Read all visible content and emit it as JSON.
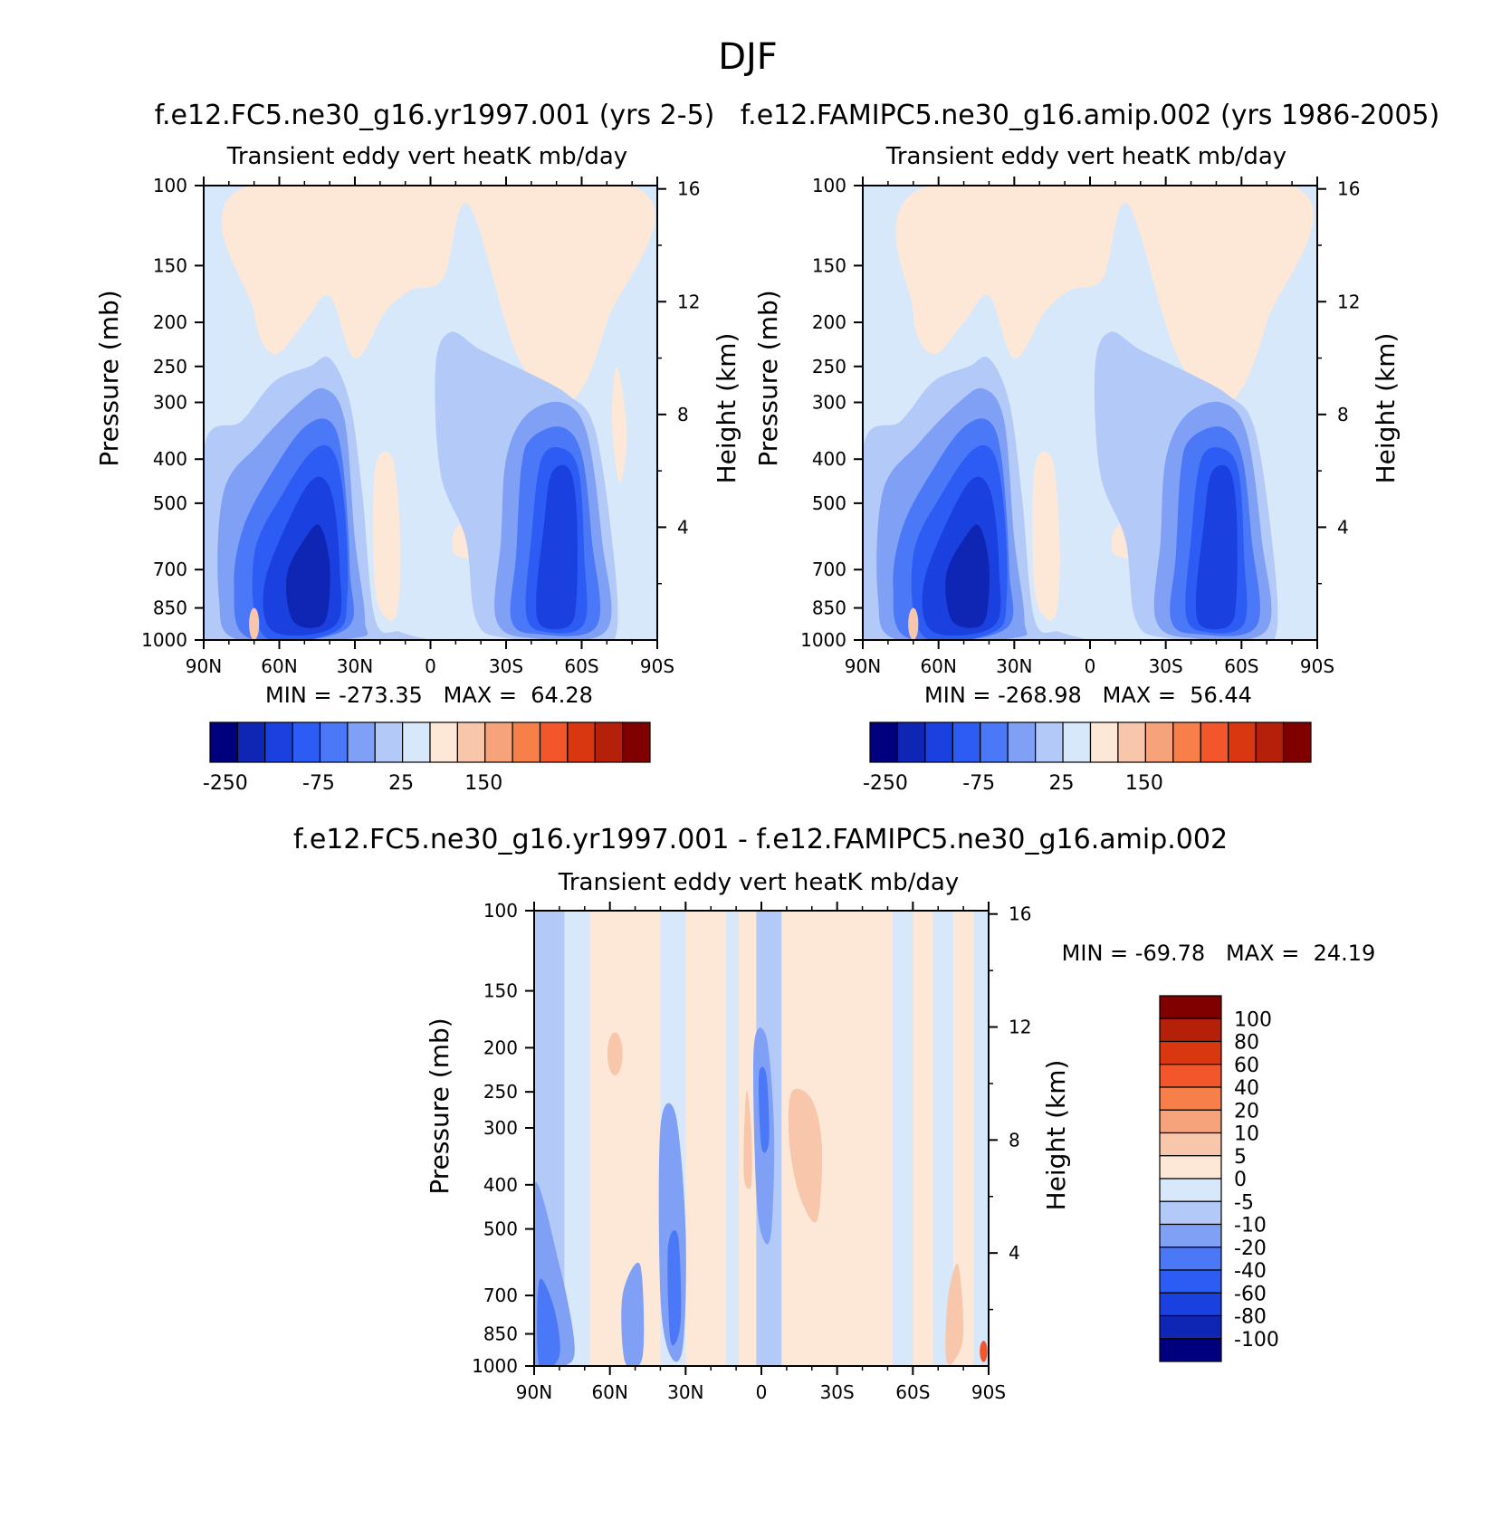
{
  "figure_title": "DJF",
  "chart_data": [
    {
      "type": "heatmap",
      "subtitle": "f.e12.FC5.ne30_g16.yr1997.001 (yrs 2-5)",
      "title": "Transient eddy vert heatK mb/day",
      "ylabel": "Pressure (mb)",
      "y2label": "Height (km)",
      "xlabel": "",
      "x_ticks": [
        "90N",
        "60N",
        "30N",
        "0",
        "30S",
        "60S",
        "90S"
      ],
      "y_ticks": [
        "100",
        "150",
        "200",
        "250",
        "300",
        "400",
        "500",
        "700",
        "850",
        "1000"
      ],
      "y2_ticks": [
        "16",
        "12",
        "8",
        "4"
      ],
      "ylim": [
        1000,
        100
      ],
      "stats": "MIN = -273.35   MAX =  64.28",
      "colorbar_orientation": "horizontal",
      "colorbar_labels": [
        "-250",
        "-75",
        "25",
        "150"
      ],
      "colorbar_colors": [
        "#00007f",
        "#0f26b5",
        "#1a40e0",
        "#2d5cf5",
        "#4a78f7",
        "#7fa0f5",
        "#b3c9f7",
        "#d8e8fb",
        "#fde8d8",
        "#f8c6aa",
        "#f6a27a",
        "#f67f4a",
        "#f2562a",
        "#d9370f",
        "#b4200a",
        "#800000"
      ],
      "note": "Negative cores approx -250 near 45N 700-850mb and -200 near 55S 600mb; positive 0 to 25 in upper troposphere"
    },
    {
      "type": "heatmap",
      "subtitle": "f.e12.FAMIPC5.ne30_g16.amip.002 (yrs 1986-2005)",
      "title": "Transient eddy vert heatK mb/day",
      "ylabel": "Pressure (mb)",
      "y2label": "Height (km)",
      "xlabel": "",
      "x_ticks": [
        "90N",
        "60N",
        "30N",
        "0",
        "30S",
        "60S",
        "90S"
      ],
      "y_ticks": [
        "100",
        "150",
        "200",
        "250",
        "300",
        "400",
        "500",
        "700",
        "850",
        "1000"
      ],
      "y2_ticks": [
        "16",
        "12",
        "8",
        "4"
      ],
      "ylim": [
        1000,
        100
      ],
      "stats": "MIN = -268.98   MAX =  56.44",
      "colorbar_orientation": "horizontal",
      "colorbar_labels": [
        "-250",
        "-75",
        "25",
        "150"
      ],
      "colorbar_colors": [
        "#00007f",
        "#0f26b5",
        "#1a40e0",
        "#2d5cf5",
        "#4a78f7",
        "#7fa0f5",
        "#b3c9f7",
        "#d8e8fb",
        "#fde8d8",
        "#f8c6aa",
        "#f6a27a",
        "#f67f4a",
        "#f2562a",
        "#d9370f",
        "#b4200a",
        "#800000"
      ]
    },
    {
      "type": "heatmap",
      "subtitle": "f.e12.FC5.ne30_g16.yr1997.001 - f.e12.FAMIPC5.ne30_g16.amip.002",
      "title": "Transient eddy vert heatK mb/day",
      "ylabel": "Pressure (mb)",
      "y2label": "Height (km)",
      "xlabel": "",
      "x_ticks": [
        "90N",
        "60N",
        "30N",
        "0",
        "30S",
        "60S",
        "90S"
      ],
      "y_ticks": [
        "100",
        "150",
        "200",
        "250",
        "300",
        "400",
        "500",
        "700",
        "850",
        "1000"
      ],
      "y2_ticks": [
        "16",
        "12",
        "8",
        "4"
      ],
      "ylim": [
        1000,
        100
      ],
      "stats": "MIN = -69.78   MAX =  24.19",
      "colorbar_orientation": "vertical",
      "colorbar_labels": [
        "100",
        "80",
        "60",
        "40",
        "20",
        "10",
        "5",
        "0",
        "-5",
        "-10",
        "-20",
        "-40",
        "-60",
        "-80",
        "-100"
      ],
      "colorbar_colors": [
        "#800000",
        "#b4200a",
        "#d9370f",
        "#f2562a",
        "#f67f4a",
        "#f6a27a",
        "#f8c6aa",
        "#fde8d8",
        "#d8e8fb",
        "#b3c9f7",
        "#7fa0f5",
        "#4a78f7",
        "#2d5cf5",
        "#1a40e0",
        "#0f26b5",
        "#00007f"
      ]
    }
  ],
  "colors": {
    "c_light_blue": "#d8e8fb",
    "c_pale_blue": "#b3c9f7",
    "c_mid_blue": "#7fa0f5",
    "c_blue": "#4a78f7",
    "c_strong_blue": "#2d5cf5",
    "c_deep_blue": "#1a40e0",
    "c_dark_blue": "#0f26b5",
    "c_navy": "#00007f",
    "c_light_orange": "#fde8d8",
    "c_peach": "#f8c6aa",
    "c_red": "#f2562a"
  }
}
